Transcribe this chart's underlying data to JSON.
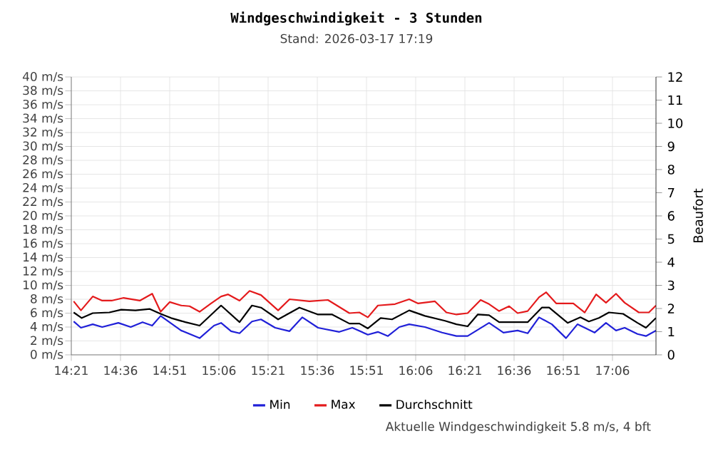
{
  "chart_data": {
    "type": "line",
    "title": "Windgeschwindigkeit - 3 Stunden",
    "subtitle": "Stand: 2026-03-17 17:19",
    "y2label": "Beaufort",
    "annotations": [
      "Aktuelle Windgeschwindigkeit 5.8 m/s, 4 bft"
    ],
    "xlim": [
      14.35,
      17.321
    ],
    "xticks": [
      {
        "value": 14.35,
        "label": "14:21"
      },
      {
        "value": 14.6,
        "label": "14:36"
      },
      {
        "value": 14.85,
        "label": "14:51"
      },
      {
        "value": 15.1,
        "label": "15:06"
      },
      {
        "value": 15.35,
        "label": "15:21"
      },
      {
        "value": 15.6,
        "label": "15:36"
      },
      {
        "value": 15.85,
        "label": "15:51"
      },
      {
        "value": 16.1,
        "label": "16:06"
      },
      {
        "value": 16.35,
        "label": "16:21"
      },
      {
        "value": 16.6,
        "label": "16:36"
      },
      {
        "value": 16.85,
        "label": "16:51"
      },
      {
        "value": 17.1,
        "label": "17:06"
      }
    ],
    "ylim": [
      0,
      40
    ],
    "yticks": [
      {
        "value": 0,
        "label": "0 m/s"
      },
      {
        "value": 2,
        "label": "2 m/s"
      },
      {
        "value": 4,
        "label": "4 m/s"
      },
      {
        "value": 6,
        "label": "6 m/s"
      },
      {
        "value": 8,
        "label": "8 m/s"
      },
      {
        "value": 10,
        "label": "10 m/s"
      },
      {
        "value": 12,
        "label": "12 m/s"
      },
      {
        "value": 14,
        "label": "14 m/s"
      },
      {
        "value": 16,
        "label": "16 m/s"
      },
      {
        "value": 18,
        "label": "18 m/s"
      },
      {
        "value": 20,
        "label": "20 m/s"
      },
      {
        "value": 22,
        "label": "22 m/s"
      },
      {
        "value": 24,
        "label": "24 m/s"
      },
      {
        "value": 26,
        "label": "26 m/s"
      },
      {
        "value": 28,
        "label": "28 m/s"
      },
      {
        "value": 30,
        "label": "30 m/s"
      },
      {
        "value": 32,
        "label": "32 m/s"
      },
      {
        "value": 34,
        "label": "34 m/s"
      },
      {
        "value": 36,
        "label": "36 m/s"
      },
      {
        "value": 38,
        "label": "38 m/s"
      },
      {
        "value": 40,
        "label": "40 m/s"
      }
    ],
    "y2lim": [
      0,
      12
    ],
    "y2ticks": [
      0,
      1,
      2,
      3,
      4,
      5,
      6,
      7,
      8,
      9,
      10,
      11,
      12
    ],
    "grid": true,
    "legend": "bottom",
    "series": [
      {
        "name": "Min",
        "color": "#2020d8",
        "x": [
          14.362,
          14.399,
          14.459,
          14.507,
          14.589,
          14.652,
          14.712,
          14.761,
          14.804,
          14.908,
          15.002,
          15.075,
          15.111,
          15.162,
          15.205,
          15.268,
          15.314,
          15.386,
          15.459,
          15.524,
          15.604,
          15.712,
          15.778,
          15.857,
          15.908,
          15.959,
          16.017,
          16.067,
          16.147,
          16.234,
          16.307,
          16.364,
          16.473,
          16.546,
          16.618,
          16.669,
          16.727,
          16.792,
          16.864,
          16.922,
          17.009,
          17.067,
          17.118,
          17.162,
          17.227,
          17.27,
          17.321
        ],
        "values": [
          4.8,
          3.9,
          4.4,
          4.0,
          4.6,
          4.0,
          4.7,
          4.2,
          5.6,
          3.5,
          2.4,
          4.2,
          4.6,
          3.4,
          3.1,
          4.8,
          5.1,
          3.9,
          3.4,
          5.4,
          3.9,
          3.3,
          3.9,
          2.9,
          3.3,
          2.7,
          4.0,
          4.4,
          4.0,
          3.2,
          2.7,
          2.7,
          4.6,
          3.2,
          3.5,
          3.1,
          5.4,
          4.4,
          2.4,
          4.4,
          3.2,
          4.6,
          3.5,
          3.9,
          3.0,
          2.7,
          3.5
        ]
      },
      {
        "name": "Max",
        "color": "#e41a1c",
        "x": [
          14.362,
          14.399,
          14.459,
          14.507,
          14.555,
          14.616,
          14.698,
          14.761,
          14.804,
          14.85,
          14.908,
          14.951,
          15.002,
          15.06,
          15.111,
          15.147,
          15.205,
          15.256,
          15.314,
          15.401,
          15.459,
          15.56,
          15.654,
          15.763,
          15.814,
          15.857,
          15.908,
          15.995,
          16.067,
          16.111,
          16.198,
          16.256,
          16.307,
          16.364,
          16.43,
          16.473,
          16.524,
          16.575,
          16.618,
          16.669,
          16.727,
          16.763,
          16.814,
          16.901,
          16.959,
          17.017,
          17.067,
          17.118,
          17.162,
          17.234,
          17.285,
          17.321
        ],
        "values": [
          7.7,
          6.4,
          8.4,
          7.8,
          7.8,
          8.2,
          7.8,
          8.8,
          6.2,
          7.6,
          7.1,
          7.0,
          6.2,
          7.4,
          8.4,
          8.7,
          7.8,
          9.2,
          8.6,
          6.4,
          8.0,
          7.7,
          7.9,
          6.0,
          6.1,
          5.4,
          7.1,
          7.3,
          8.0,
          7.4,
          7.7,
          6.1,
          5.8,
          6.0,
          7.9,
          7.3,
          6.3,
          7.0,
          6.0,
          6.3,
          8.3,
          9.0,
          7.4,
          7.4,
          6.1,
          8.7,
          7.5,
          8.8,
          7.5,
          6.1,
          6.1,
          7.1
        ]
      },
      {
        "name": "Durchschnitt",
        "color": "#000000",
        "x": [
          14.362,
          14.403,
          14.459,
          14.543,
          14.604,
          14.676,
          14.749,
          14.804,
          14.857,
          14.93,
          15.002,
          15.111,
          15.205,
          15.268,
          15.314,
          15.401,
          15.509,
          15.604,
          15.676,
          15.763,
          15.814,
          15.857,
          15.922,
          15.98,
          16.067,
          16.147,
          16.249,
          16.307,
          16.364,
          16.415,
          16.473,
          16.524,
          16.669,
          16.741,
          16.778,
          16.872,
          16.937,
          16.98,
          17.031,
          17.082,
          17.154,
          17.227,
          17.27,
          17.321
        ],
        "values": [
          6.1,
          5.3,
          6.0,
          6.1,
          6.5,
          6.4,
          6.6,
          5.9,
          5.3,
          4.7,
          4.2,
          7.1,
          4.7,
          7.1,
          6.8,
          5.1,
          6.8,
          5.8,
          5.8,
          4.5,
          4.5,
          3.8,
          5.3,
          5.1,
          6.4,
          5.6,
          4.9,
          4.4,
          4.1,
          5.8,
          5.7,
          4.7,
          4.7,
          6.8,
          6.8,
          4.6,
          5.4,
          4.8,
          5.3,
          6.1,
          5.9,
          4.6,
          3.9,
          5.3
        ]
      }
    ]
  }
}
